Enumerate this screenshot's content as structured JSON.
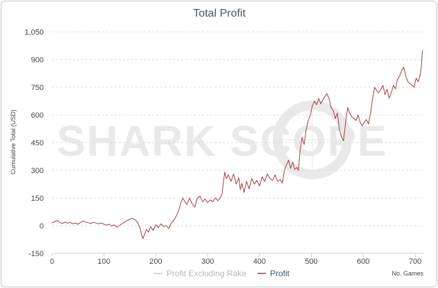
{
  "chart_data": {
    "type": "line",
    "title": "Total Profit",
    "ylabel": "Cumulative Total (USD)",
    "xlabel": "No. Games",
    "watermark": "SHARK SCOPE",
    "xlim": [
      0,
      716
    ],
    "ylim": [
      -150,
      1050
    ],
    "x_ticks": [
      0,
      100,
      200,
      300,
      400,
      500,
      600,
      700
    ],
    "y_ticks": [
      -150,
      0,
      150,
      300,
      450,
      600,
      750,
      900,
      1050
    ],
    "y_tick_labels": [
      "-150",
      "0",
      "150",
      "300",
      "450",
      "600",
      "750",
      "900",
      "1,050"
    ],
    "grid": true,
    "legend_position": "bottom-center",
    "series": [
      {
        "name": "Profit Excluding Rake",
        "color": "#c8c8c8",
        "visible": false,
        "points": []
      },
      {
        "name": "Profit",
        "color": "#a33b3b",
        "points": [
          [
            0,
            15
          ],
          [
            5,
            22
          ],
          [
            10,
            28
          ],
          [
            15,
            18
          ],
          [
            20,
            12
          ],
          [
            25,
            20
          ],
          [
            30,
            14
          ],
          [
            35,
            18
          ],
          [
            40,
            10
          ],
          [
            45,
            15
          ],
          [
            50,
            8
          ],
          [
            55,
            18
          ],
          [
            60,
            25
          ],
          [
            65,
            20
          ],
          [
            70,
            16
          ],
          [
            75,
            12
          ],
          [
            80,
            18
          ],
          [
            85,
            14
          ],
          [
            90,
            10
          ],
          [
            95,
            15
          ],
          [
            100,
            8
          ],
          [
            105,
            3
          ],
          [
            110,
            8
          ],
          [
            115,
            -2
          ],
          [
            120,
            5
          ],
          [
            125,
            -8
          ],
          [
            130,
            2
          ],
          [
            135,
            10
          ],
          [
            140,
            20
          ],
          [
            145,
            28
          ],
          [
            150,
            35
          ],
          [
            155,
            40
          ],
          [
            160,
            32
          ],
          [
            165,
            18
          ],
          [
            170,
            -15
          ],
          [
            172,
            -40
          ],
          [
            175,
            -70
          ],
          [
            178,
            -50
          ],
          [
            182,
            -20
          ],
          [
            186,
            -35
          ],
          [
            190,
            -5
          ],
          [
            195,
            -25
          ],
          [
            200,
            5
          ],
          [
            205,
            -10
          ],
          [
            210,
            10
          ],
          [
            215,
            -5
          ],
          [
            220,
            0
          ],
          [
            225,
            -15
          ],
          [
            230,
            15
          ],
          [
            235,
            30
          ],
          [
            240,
            55
          ],
          [
            245,
            90
          ],
          [
            248,
            120
          ],
          [
            252,
            150
          ],
          [
            256,
            130
          ],
          [
            260,
            115
          ],
          [
            265,
            150
          ],
          [
            270,
            120
          ],
          [
            275,
            100
          ],
          [
            280,
            150
          ],
          [
            285,
            160
          ],
          [
            290,
            130
          ],
          [
            295,
            145
          ],
          [
            300,
            125
          ],
          [
            305,
            140
          ],
          [
            310,
            130
          ],
          [
            315,
            150
          ],
          [
            320,
            135
          ],
          [
            325,
            155
          ],
          [
            328,
            175
          ],
          [
            330,
            230
          ],
          [
            333,
            290
          ],
          [
            336,
            255
          ],
          [
            340,
            275
          ],
          [
            345,
            240
          ],
          [
            350,
            280
          ],
          [
            355,
            225
          ],
          [
            360,
            260
          ],
          [
            363,
            195
          ],
          [
            366,
            230
          ],
          [
            370,
            180
          ],
          [
            375,
            240
          ],
          [
            380,
            200
          ],
          [
            385,
            255
          ],
          [
            390,
            225
          ],
          [
            395,
            245
          ],
          [
            400,
            215
          ],
          [
            405,
            265
          ],
          [
            410,
            240
          ],
          [
            415,
            280
          ],
          [
            420,
            255
          ],
          [
            425,
            245
          ],
          [
            430,
            275
          ],
          [
            435,
            240
          ],
          [
            440,
            250
          ],
          [
            444,
            230
          ],
          [
            448,
            300
          ],
          [
            452,
            330
          ],
          [
            456,
            355
          ],
          [
            460,
            310
          ],
          [
            464,
            345
          ],
          [
            468,
            305
          ],
          [
            472,
            315
          ],
          [
            475,
            300
          ],
          [
            478,
            400
          ],
          [
            482,
            480
          ],
          [
            486,
            440
          ],
          [
            490,
            520
          ],
          [
            494,
            570
          ],
          [
            498,
            600
          ],
          [
            502,
            650
          ],
          [
            506,
            675
          ],
          [
            510,
            655
          ],
          [
            514,
            690
          ],
          [
            518,
            660
          ],
          [
            522,
            680
          ],
          [
            526,
            700
          ],
          [
            530,
            715
          ],
          [
            534,
            690
          ],
          [
            538,
            640
          ],
          [
            542,
            625
          ],
          [
            546,
            580
          ],
          [
            550,
            610
          ],
          [
            554,
            520
          ],
          [
            558,
            480
          ],
          [
            562,
            460
          ],
          [
            566,
            560
          ],
          [
            570,
            640
          ],
          [
            574,
            610
          ],
          [
            578,
            590
          ],
          [
            582,
            580
          ],
          [
            586,
            570
          ],
          [
            590,
            600
          ],
          [
            594,
            560
          ],
          [
            598,
            540
          ],
          [
            602,
            560
          ],
          [
            606,
            575
          ],
          [
            610,
            550
          ],
          [
            614,
            610
          ],
          [
            618,
            690
          ],
          [
            622,
            750
          ],
          [
            626,
            730
          ],
          [
            630,
            720
          ],
          [
            634,
            740
          ],
          [
            638,
            760
          ],
          [
            642,
            710
          ],
          [
            646,
            740
          ],
          [
            650,
            690
          ],
          [
            654,
            720
          ],
          [
            658,
            760
          ],
          [
            662,
            740
          ],
          [
            666,
            790
          ],
          [
            670,
            810
          ],
          [
            674,
            840
          ],
          [
            678,
            860
          ],
          [
            682,
            810
          ],
          [
            686,
            780
          ],
          [
            690,
            770
          ],
          [
            694,
            760
          ],
          [
            698,
            750
          ],
          [
            702,
            800
          ],
          [
            706,
            780
          ],
          [
            710,
            820
          ],
          [
            712,
            860
          ],
          [
            714,
            950
          ]
        ]
      }
    ]
  }
}
